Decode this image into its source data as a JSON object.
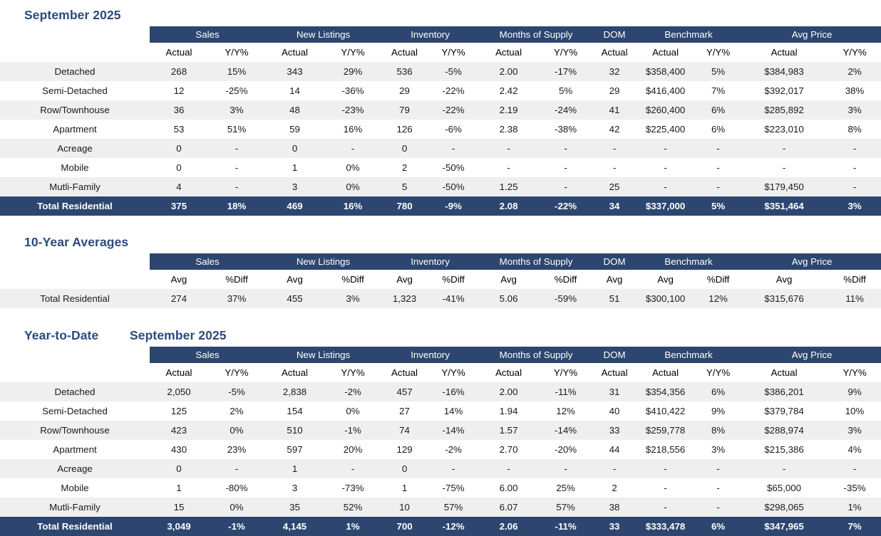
{
  "colors": {
    "navy_header": "#2d4670",
    "title_text": "#2b4a7d",
    "row_stripe": "#efefef",
    "total_row_text": "#ffffff",
    "body_text": "#1a1a1a"
  },
  "chart_data": [
    {
      "type": "table",
      "title": "September 2025",
      "column_groups": [
        {
          "label": "Sales",
          "cols": 2
        },
        {
          "label": "New Listings",
          "cols": 2
        },
        {
          "label": "Inventory",
          "cols": 2
        },
        {
          "label": "Months of Supply",
          "cols": 2
        },
        {
          "label": "DOM",
          "cols": 1
        },
        {
          "label": "Benchmark",
          "cols": 2
        },
        {
          "label": "Avg Price",
          "cols": 2
        }
      ],
      "subheaders": [
        "Actual",
        "Y/Y%",
        "Actual",
        "Y/Y%",
        "Actual",
        "Y/Y%",
        "Actual",
        "Y/Y%",
        "Actual",
        "Actual",
        "Y/Y%",
        "Actual",
        "Y/Y%"
      ],
      "rows": [
        {
          "label": "Detached",
          "total": false,
          "values": [
            "268",
            "15%",
            "343",
            "29%",
            "536",
            "-5%",
            "2.00",
            "-17%",
            "32",
            "$358,400",
            "5%",
            "$384,983",
            "2%"
          ]
        },
        {
          "label": "Semi-Detached",
          "total": false,
          "values": [
            "12",
            "-25%",
            "14",
            "-36%",
            "29",
            "-22%",
            "2.42",
            "5%",
            "29",
            "$416,400",
            "7%",
            "$392,017",
            "38%"
          ]
        },
        {
          "label": "Row/Townhouse",
          "total": false,
          "values": [
            "36",
            "3%",
            "48",
            "-23%",
            "79",
            "-22%",
            "2.19",
            "-24%",
            "41",
            "$260,400",
            "6%",
            "$285,892",
            "3%"
          ]
        },
        {
          "label": "Apartment",
          "total": false,
          "values": [
            "53",
            "51%",
            "59",
            "16%",
            "126",
            "-6%",
            "2.38",
            "-38%",
            "42",
            "$225,400",
            "6%",
            "$223,010",
            "8%"
          ]
        },
        {
          "label": "Acreage",
          "total": false,
          "values": [
            "0",
            "-",
            "0",
            "-",
            "0",
            "-",
            "-",
            "-",
            "-",
            "-",
            "-",
            "-",
            "-"
          ]
        },
        {
          "label": "Mobile",
          "total": false,
          "values": [
            "0",
            "-",
            "1",
            "0%",
            "2",
            "-50%",
            "-",
            "-",
            "-",
            "-",
            "-",
            "-",
            "-"
          ]
        },
        {
          "label": "Mutli-Family",
          "total": false,
          "values": [
            "4",
            "-",
            "3",
            "0%",
            "5",
            "-50%",
            "1.25",
            "-",
            "25",
            "-",
            "-",
            "$179,450",
            "-"
          ]
        },
        {
          "label": "Total Residential",
          "total": true,
          "values": [
            "375",
            "18%",
            "469",
            "16%",
            "780",
            "-9%",
            "2.08",
            "-22%",
            "34",
            "$337,000",
            "5%",
            "$351,464",
            "3%"
          ]
        }
      ]
    },
    {
      "type": "table",
      "title": "10-Year Averages",
      "column_groups": [
        {
          "label": "Sales",
          "cols": 2
        },
        {
          "label": "New Listings",
          "cols": 2
        },
        {
          "label": "Inventory",
          "cols": 2
        },
        {
          "label": "Months of Supply",
          "cols": 2
        },
        {
          "label": "DOM",
          "cols": 1
        },
        {
          "label": "Benchmark",
          "cols": 2
        },
        {
          "label": "Avg Price",
          "cols": 2
        }
      ],
      "subheaders": [
        "Avg",
        "%Diff",
        "Avg",
        "%Diff",
        "Avg",
        "%Diff",
        "Avg",
        "%Diff",
        "Avg",
        "Avg",
        "%Diff",
        "Avg",
        "%Diff"
      ],
      "rows": [
        {
          "label": "Total Residential",
          "total": false,
          "values": [
            "274",
            "37%",
            "455",
            "3%",
            "1,323",
            "-41%",
            "5.06",
            "-59%",
            "51",
            "$300,100",
            "12%",
            "$315,676",
            "11%"
          ]
        }
      ]
    },
    {
      "type": "table",
      "title_left": "Year-to-Date",
      "title": "September 2025",
      "column_groups": [
        {
          "label": "Sales",
          "cols": 2
        },
        {
          "label": "New Listings",
          "cols": 2
        },
        {
          "label": "Inventory",
          "cols": 2
        },
        {
          "label": "Months of Supply",
          "cols": 2
        },
        {
          "label": "DOM",
          "cols": 1
        },
        {
          "label": "Benchmark",
          "cols": 2
        },
        {
          "label": "Avg Price",
          "cols": 2
        }
      ],
      "subheaders": [
        "Actual",
        "Y/Y%",
        "Actual",
        "Y/Y%",
        "Actual",
        "Y/Y%",
        "Actual",
        "Y/Y%",
        "Actual",
        "Actual",
        "Y/Y%",
        "Actual",
        "Y/Y%"
      ],
      "rows": [
        {
          "label": "Detached",
          "total": false,
          "values": [
            "2,050",
            "-5%",
            "2,838",
            "-2%",
            "457",
            "-16%",
            "2.00",
            "-11%",
            "31",
            "$354,356",
            "6%",
            "$386,201",
            "9%"
          ]
        },
        {
          "label": "Semi-Detached",
          "total": false,
          "values": [
            "125",
            "2%",
            "154",
            "0%",
            "27",
            "14%",
            "1.94",
            "12%",
            "40",
            "$410,422",
            "9%",
            "$379,784",
            "10%"
          ]
        },
        {
          "label": "Row/Townhouse",
          "total": false,
          "values": [
            "423",
            "0%",
            "510",
            "-1%",
            "74",
            "-14%",
            "1.57",
            "-14%",
            "33",
            "$259,778",
            "8%",
            "$288,974",
            "3%"
          ]
        },
        {
          "label": "Apartment",
          "total": false,
          "values": [
            "430",
            "23%",
            "597",
            "20%",
            "129",
            "-2%",
            "2.70",
            "-20%",
            "44",
            "$218,556",
            "3%",
            "$215,386",
            "4%"
          ]
        },
        {
          "label": "Acreage",
          "total": false,
          "values": [
            "0",
            "-",
            "1",
            "-",
            "0",
            "-",
            "-",
            "-",
            "-",
            "-",
            "-",
            "-",
            "-"
          ]
        },
        {
          "label": "Mobile",
          "total": false,
          "values": [
            "1",
            "-80%",
            "3",
            "-73%",
            "1",
            "-75%",
            "6.00",
            "25%",
            "2",
            "-",
            "-",
            "$65,000",
            "-35%"
          ]
        },
        {
          "label": "Mutli-Family",
          "total": false,
          "values": [
            "15",
            "0%",
            "35",
            "52%",
            "10",
            "57%",
            "6.07",
            "57%",
            "38",
            "-",
            "-",
            "$298,065",
            "1%"
          ]
        },
        {
          "label": "Total Residential",
          "total": true,
          "values": [
            "3,049",
            "-1%",
            "4,145",
            "1%",
            "700",
            "-12%",
            "2.06",
            "-11%",
            "33",
            "$333,478",
            "6%",
            "$347,965",
            "7%"
          ]
        }
      ]
    }
  ]
}
